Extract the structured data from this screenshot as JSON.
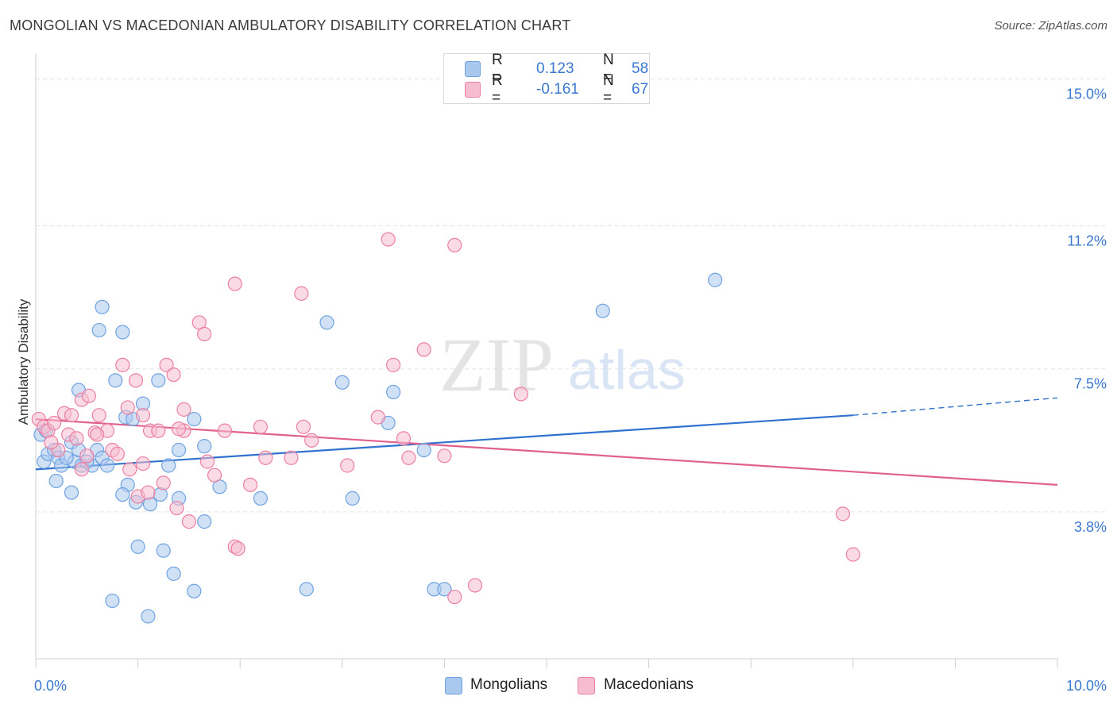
{
  "header": {
    "title": "MONGOLIAN VS MACEDONIAN AMBULATORY DISABILITY CORRELATION CHART",
    "source": "Source: ZipAtlas.com"
  },
  "watermark": {
    "zip": "ZIP",
    "atlas": "atlas"
  },
  "legend": {
    "rows": [
      {
        "r_label": "R =",
        "r_value": "0.123",
        "n_label": "N =",
        "n_value": "58",
        "color": "#a9c8ee"
      },
      {
        "r_label": "R =",
        "r_value": "-0.161",
        "n_label": "N =",
        "n_value": "67",
        "color": "#f6bdd0"
      }
    ]
  },
  "bottom_legend": {
    "mongolians": "Mongolians",
    "macedonians": "Macedonians"
  },
  "chart_data": {
    "type": "scatter",
    "title": "MONGOLIAN VS MACEDONIAN AMBULATORY DISABILITY CORRELATION CHART",
    "xlabel": "",
    "ylabel": "Ambulatory Disability",
    "xlim": [
      0,
      10
    ],
    "ylim": [
      0,
      15.4
    ],
    "x_tick_labels": [
      "0.0%",
      "10.0%"
    ],
    "y_ticks": [
      3.8,
      7.5,
      11.2,
      15.0
    ],
    "y_tick_labels": [
      "3.8%",
      "7.5%",
      "11.2%",
      "15.0%"
    ],
    "grid": "horizontal dashed",
    "legend_position": "top-center",
    "series": [
      {
        "name": "Mongolians",
        "color": "#6fa3e0",
        "fill": "#a9c8ee",
        "trend": {
          "x": [
            0,
            8.0
          ],
          "y": [
            4.9,
            6.3
          ],
          "dashed_to": [
            10.0,
            6.75
          ]
        },
        "points": [
          [
            0.05,
            5.8
          ],
          [
            0.08,
            5.1
          ],
          [
            0.12,
            5.3
          ],
          [
            0.18,
            5.4
          ],
          [
            0.22,
            5.2
          ],
          [
            0.25,
            5.0
          ],
          [
            0.35,
            5.6
          ],
          [
            0.38,
            5.1
          ],
          [
            0.42,
            5.4
          ],
          [
            0.45,
            5.0
          ],
          [
            0.55,
            5.0
          ],
          [
            0.6,
            5.4
          ],
          [
            0.65,
            5.2
          ],
          [
            0.7,
            5.0
          ],
          [
            0.2,
            4.6
          ],
          [
            0.35,
            4.3
          ],
          [
            0.42,
            6.95
          ],
          [
            0.62,
            8.5
          ],
          [
            0.65,
            9.1
          ],
          [
            0.85,
            8.45
          ],
          [
            0.78,
            7.2
          ],
          [
            0.88,
            6.25
          ],
          [
            0.95,
            6.2
          ],
          [
            1.05,
            6.6
          ],
          [
            1.2,
            7.2
          ],
          [
            1.55,
            6.2
          ],
          [
            1.65,
            5.5
          ],
          [
            1.4,
            5.4
          ],
          [
            1.3,
            5.0
          ],
          [
            0.9,
            4.5
          ],
          [
            0.85,
            4.25
          ],
          [
            0.98,
            4.05
          ],
          [
            1.12,
            4.0
          ],
          [
            1.22,
            4.25
          ],
          [
            1.4,
            4.15
          ],
          [
            1.8,
            4.45
          ],
          [
            2.2,
            4.15
          ],
          [
            2.85,
            8.7
          ],
          [
            3.0,
            7.15
          ],
          [
            3.1,
            4.15
          ],
          [
            3.5,
            6.9
          ],
          [
            3.45,
            6.1
          ],
          [
            3.8,
            5.4
          ],
          [
            1.0,
            2.9
          ],
          [
            1.25,
            2.8
          ],
          [
            1.35,
            2.2
          ],
          [
            1.55,
            1.75
          ],
          [
            1.65,
            3.55
          ],
          [
            0.75,
            1.5
          ],
          [
            1.1,
            1.1
          ],
          [
            2.65,
            1.8
          ],
          [
            3.9,
            1.8
          ],
          [
            4.0,
            1.8
          ],
          [
            5.55,
            9.0
          ],
          [
            6.65,
            9.8
          ],
          [
            0.1,
            5.9
          ],
          [
            0.3,
            5.2
          ],
          [
            0.5,
            5.1
          ]
        ]
      },
      {
        "name": "Macedonians",
        "color": "#ec7fa3",
        "fill": "#f6bdd0",
        "trend": {
          "x": [
            0,
            10.0
          ],
          "y": [
            6.2,
            4.5
          ]
        },
        "points": [
          [
            0.03,
            6.2
          ],
          [
            0.08,
            6.0
          ],
          [
            0.12,
            5.9
          ],
          [
            0.18,
            6.1
          ],
          [
            0.28,
            6.35
          ],
          [
            0.32,
            5.8
          ],
          [
            0.4,
            5.7
          ],
          [
            0.45,
            6.7
          ],
          [
            0.52,
            6.8
          ],
          [
            0.58,
            5.85
          ],
          [
            0.62,
            6.3
          ],
          [
            0.7,
            5.9
          ],
          [
            0.75,
            5.4
          ],
          [
            0.8,
            5.3
          ],
          [
            0.85,
            7.6
          ],
          [
            0.9,
            6.5
          ],
          [
            0.92,
            4.9
          ],
          [
            0.98,
            7.2
          ],
          [
            1.05,
            6.3
          ],
          [
            1.12,
            5.9
          ],
          [
            1.2,
            5.9
          ],
          [
            1.28,
            7.6
          ],
          [
            1.35,
            7.35
          ],
          [
            1.45,
            6.45
          ],
          [
            1.45,
            5.9
          ],
          [
            1.6,
            8.7
          ],
          [
            1.65,
            8.4
          ],
          [
            1.68,
            5.1
          ],
          [
            1.75,
            4.75
          ],
          [
            1.85,
            5.9
          ],
          [
            1.95,
            9.7
          ],
          [
            2.1,
            4.5
          ],
          [
            2.2,
            6.0
          ],
          [
            2.5,
            5.2
          ],
          [
            2.6,
            9.45
          ],
          [
            2.62,
            6.0
          ],
          [
            2.7,
            5.65
          ],
          [
            3.05,
            5.0
          ],
          [
            3.35,
            6.25
          ],
          [
            3.45,
            10.85
          ],
          [
            3.5,
            7.6
          ],
          [
            3.6,
            5.7
          ],
          [
            3.65,
            5.2
          ],
          [
            3.8,
            8.0
          ],
          [
            4.0,
            5.25
          ],
          [
            4.1,
            10.7
          ],
          [
            4.1,
            1.6
          ],
          [
            4.3,
            1.9
          ],
          [
            4.75,
            6.85
          ],
          [
            7.9,
            3.75
          ],
          [
            8.0,
            2.7
          ],
          [
            1.0,
            4.2
          ],
          [
            1.1,
            4.3
          ],
          [
            1.25,
            4.55
          ],
          [
            1.5,
            3.55
          ],
          [
            1.38,
            3.9
          ],
          [
            0.5,
            5.25
          ],
          [
            0.45,
            4.9
          ],
          [
            1.95,
            2.9
          ],
          [
            1.98,
            2.85
          ],
          [
            1.4,
            5.95
          ],
          [
            1.05,
            5.05
          ],
          [
            0.6,
            5.8
          ],
          [
            0.22,
            5.4
          ],
          [
            0.35,
            6.3
          ],
          [
            0.15,
            5.6
          ],
          [
            2.25,
            5.2
          ]
        ]
      }
    ]
  }
}
